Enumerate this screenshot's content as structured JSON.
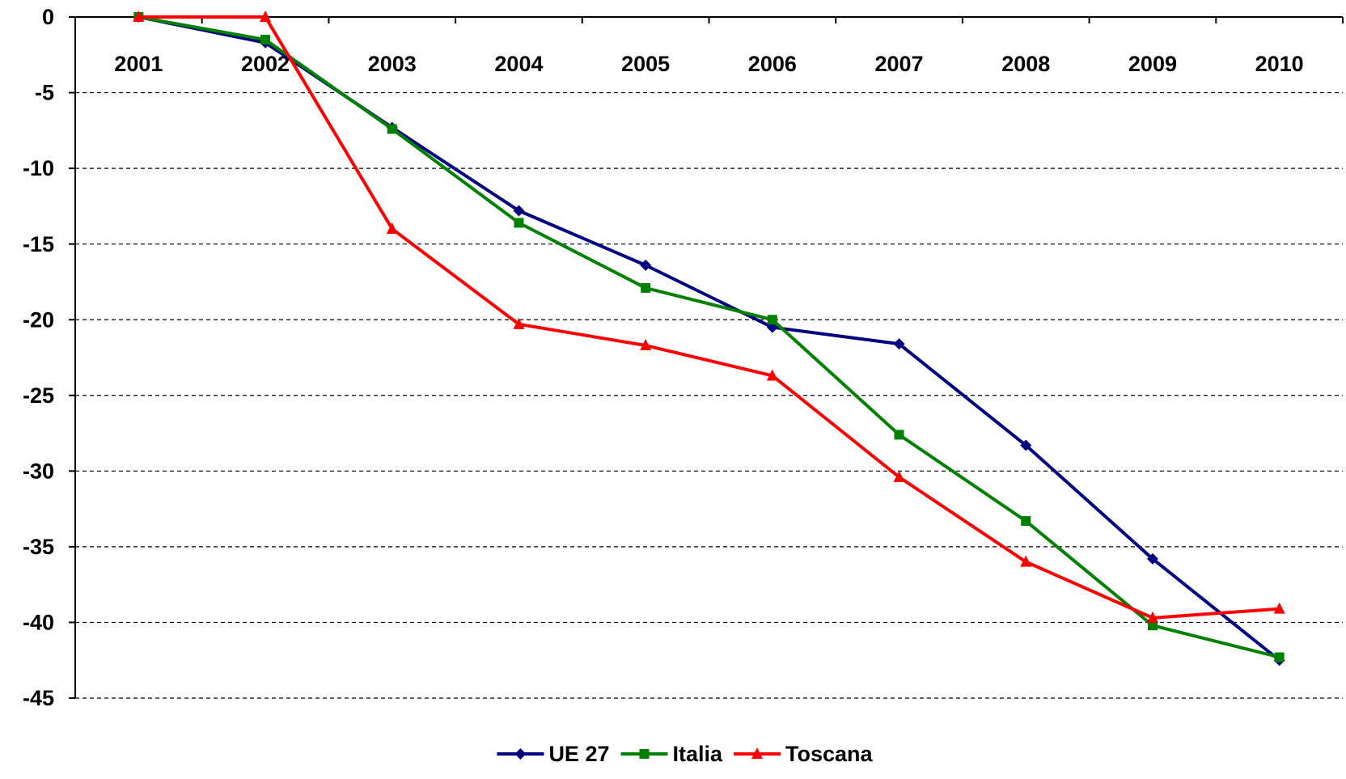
{
  "chart_data": {
    "type": "line",
    "categories": [
      "2001",
      "2002",
      "2003",
      "2004",
      "2005",
      "2006",
      "2007",
      "2008",
      "2009",
      "2010"
    ],
    "series": [
      {
        "name": "UE 27",
        "color": "#000080",
        "marker": "diamond",
        "values": [
          0,
          -1.7,
          -7.3,
          -12.8,
          -16.4,
          -20.5,
          -21.6,
          -28.3,
          -35.8,
          -42.5
        ]
      },
      {
        "name": "Italia",
        "color": "#008000",
        "marker": "square",
        "values": [
          0,
          -1.5,
          -7.4,
          -13.6,
          -17.9,
          -20.0,
          -27.6,
          -33.3,
          -40.2,
          -42.3
        ]
      },
      {
        "name": "Toscana",
        "color": "#ff0000",
        "marker": "triangle",
        "values": [
          0,
          0,
          -14.0,
          -20.3,
          -21.7,
          -23.7,
          -30.4,
          -36.0,
          -39.7,
          -39.1
        ]
      }
    ],
    "ylim": [
      -45,
      0
    ],
    "yticks": [
      0,
      -5,
      -10,
      -15,
      -20,
      -25,
      -30,
      -35,
      -40,
      -45
    ],
    "grid": true,
    "legend": "bottom"
  }
}
